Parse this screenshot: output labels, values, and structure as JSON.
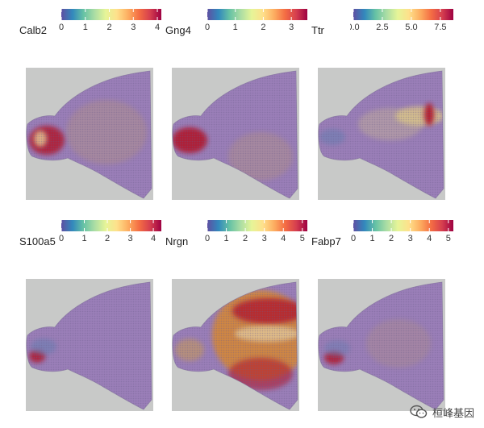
{
  "panels": [
    {
      "gene": "Calb2",
      "ticks": [
        "0",
        "1",
        "2",
        "3",
        "4"
      ],
      "tick_pos": [
        0.0,
        0.24,
        0.48,
        0.72,
        0.96
      ],
      "pattern": "calb2"
    },
    {
      "gene": "Gng4",
      "ticks": [
        "0",
        "1",
        "2",
        "3"
      ],
      "tick_pos": [
        0.0,
        0.28,
        0.56,
        0.84
      ],
      "pattern": "gng4"
    },
    {
      "gene": "Ttr",
      "ticks": [
        "0.0",
        "2.5",
        "5.0",
        "7.5"
      ],
      "tick_pos": [
        0.0,
        0.29,
        0.58,
        0.87
      ],
      "pattern": "ttr"
    },
    {
      "gene": "S100a5",
      "ticks": [
        "0",
        "1",
        "2",
        "3",
        "4"
      ],
      "tick_pos": [
        0.0,
        0.23,
        0.46,
        0.69,
        0.92
      ],
      "pattern": "s100a5"
    },
    {
      "gene": "Nrgn",
      "ticks": [
        "0",
        "1",
        "2",
        "3",
        "4",
        "5"
      ],
      "tick_pos": [
        0.0,
        0.19,
        0.38,
        0.57,
        0.76,
        0.95
      ],
      "pattern": "nrgn"
    },
    {
      "gene": "Fabp7",
      "ticks": [
        "0",
        "1",
        "2",
        "3",
        "4",
        "5"
      ],
      "tick_pos": [
        0.0,
        0.19,
        0.38,
        0.57,
        0.76,
        0.95
      ],
      "pattern": "fabp7"
    }
  ],
  "colors": {
    "spectral": [
      "#5e4fa2",
      "#3288bd",
      "#66c2a5",
      "#abdda4",
      "#e6f598",
      "#fee08b",
      "#fdae61",
      "#f46d43",
      "#d53e4f",
      "#9e0142"
    ],
    "tissue_base": "#9b7fb8",
    "background_gray": "#c8c9c8",
    "high_red": "#b2182b",
    "mid_orange": "#d9882e"
  },
  "watermark": {
    "text": "桓峰基因",
    "icon": "wechat-icon"
  }
}
